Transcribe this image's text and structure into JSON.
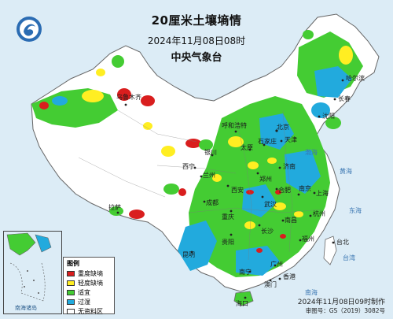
{
  "header": {
    "title": "20厘米土壤墒情",
    "subtitle": "2024年11月08日08时",
    "issuer": "中央气象台"
  },
  "colors": {
    "heavy_deficit": "#d91e1e",
    "light_deficit": "#ffee22",
    "suitable": "#44cc33",
    "excessive": "#22aadd",
    "no_data": "#ffffff",
    "sea": "#dcecf6",
    "border": "#777777"
  },
  "legend": {
    "title": "图例",
    "items": [
      {
        "label": "重度缺墒",
        "color": "#d91e1e"
      },
      {
        "label": "轻度缺墒",
        "color": "#ffee22"
      },
      {
        "label": "适宜",
        "color": "#44cc33"
      },
      {
        "label": "过湿",
        "color": "#22aadd"
      },
      {
        "label": "无资料区",
        "color": "#ffffff"
      }
    ]
  },
  "place_labels": [
    "乌鲁木齐",
    "哈尔滨",
    "长春",
    "沈阳",
    "呼和浩特",
    "北京",
    "天津",
    "石家庄",
    "太原",
    "银川",
    "西宁",
    "兰州",
    "济南",
    "郑州",
    "西安",
    "合肥",
    "南京",
    "上海",
    "武汉",
    "成都",
    "重庆",
    "长沙",
    "南昌",
    "杭州",
    "贵阳",
    "福州",
    "昆明",
    "南宁",
    "广州",
    "台北",
    "香港",
    "澳门",
    "海口",
    "拉萨"
  ],
  "sea_labels": [
    "渤海",
    "黄海",
    "东海",
    "台湾",
    "南海"
  ],
  "inset": {
    "label": "南海诸岛"
  },
  "footer": {
    "issue_time": "2024年11月08日09时制作",
    "map_number": "审图号：GS（2019）3082号"
  }
}
